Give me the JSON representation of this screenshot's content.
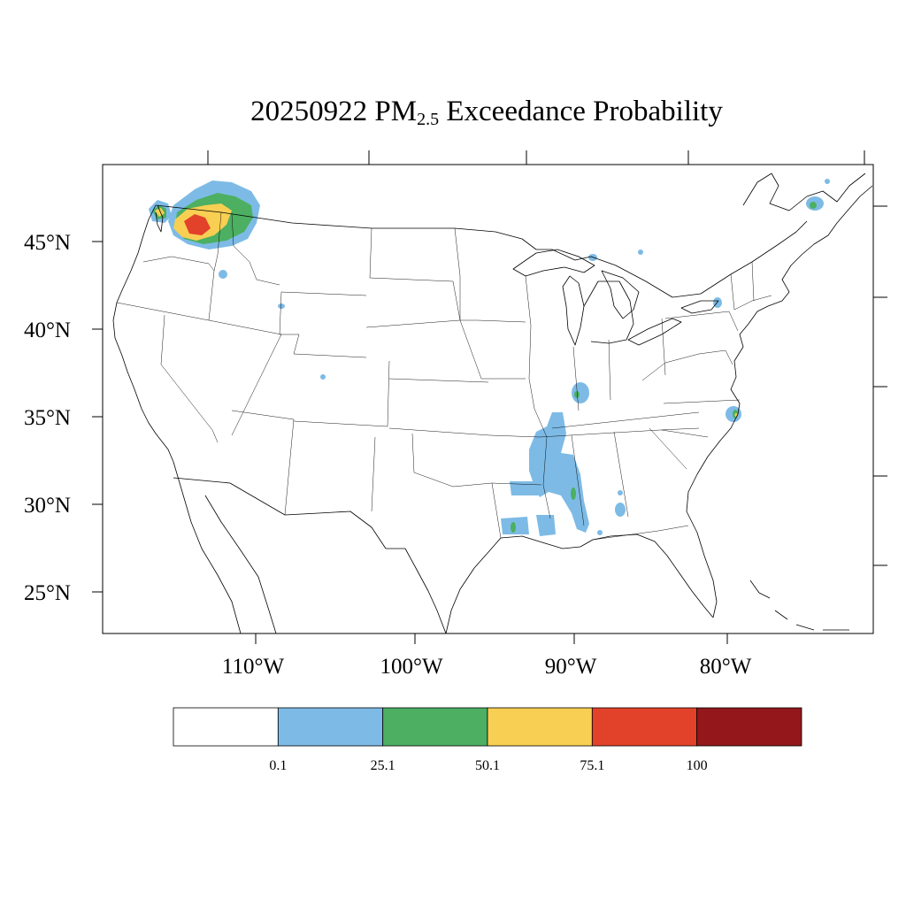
{
  "title": {
    "date": "20250922",
    "prefix": "PM",
    "subscript": "2.5",
    "suffix": "Exceedance Probability"
  },
  "map": {
    "lat_labels": [
      "45°N",
      "40°N",
      "35°N",
      "30°N",
      "25°N"
    ],
    "lon_labels": [
      "110°W",
      "100°W",
      "90°W",
      "80°W"
    ]
  },
  "colorbar": {
    "colors": [
      "#ffffff",
      "#7dbbe6",
      "#4caf62",
      "#f8cf52",
      "#e2412a",
      "#93171b"
    ],
    "labels": [
      "0.1",
      "25.1",
      "50.1",
      "75.1",
      "100"
    ]
  }
}
